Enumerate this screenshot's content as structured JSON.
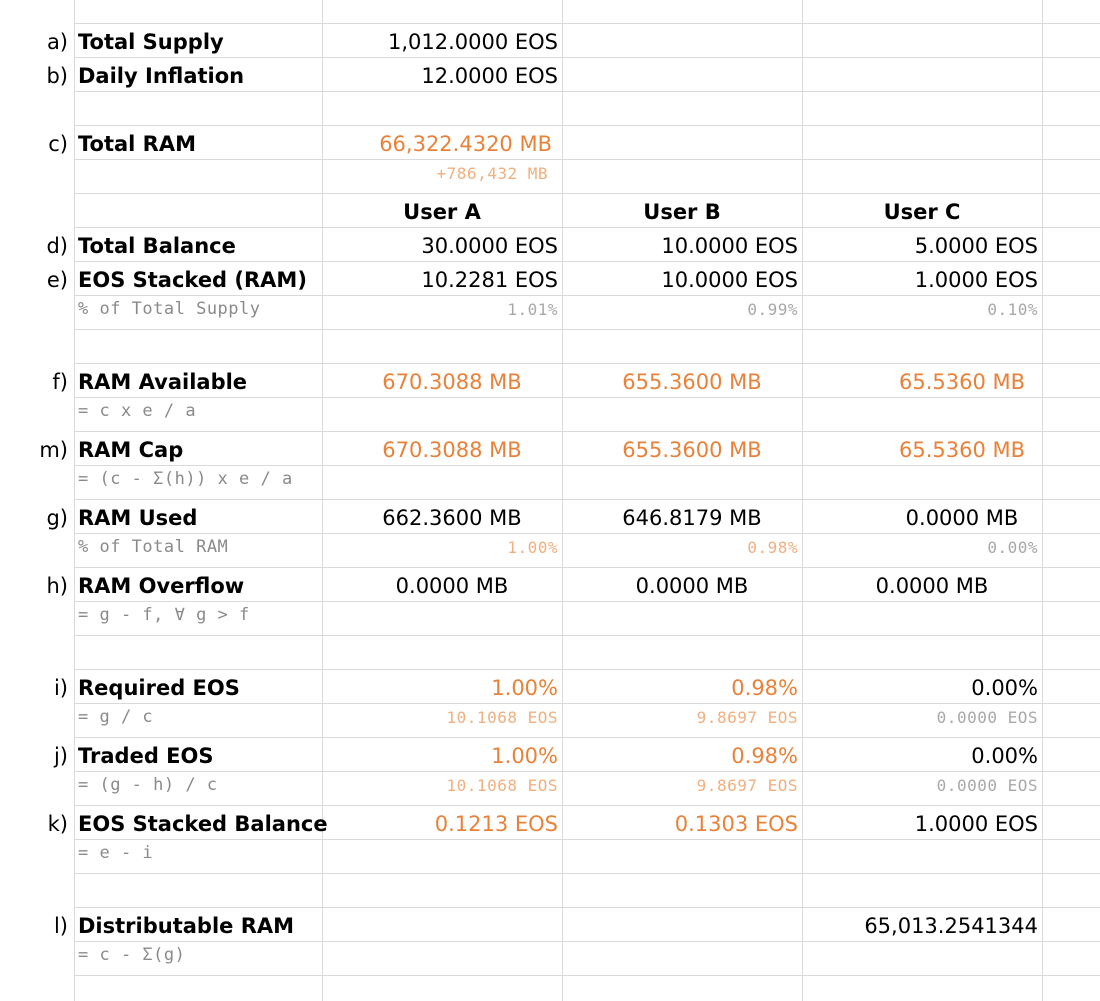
{
  "rows": {
    "a": {
      "letter": "a)",
      "label": "Total Supply",
      "value": "1,012.0000 EOS"
    },
    "b": {
      "letter": "b)",
      "label": "Daily Inflation",
      "value": "12.0000 EOS"
    },
    "c": {
      "letter": "c)",
      "label": "Total RAM",
      "value": "66,322.4320 MB",
      "sub_value": "+786,432 MB"
    },
    "users": [
      "User A",
      "User B",
      "User C"
    ],
    "d": {
      "letter": "d)",
      "label": "Total Balance",
      "values": [
        "30.0000 EOS",
        "10.0000 EOS",
        "5.0000 EOS"
      ]
    },
    "e": {
      "letter": "e)",
      "label": "EOS Stacked (RAM)",
      "values": [
        "10.2281 EOS",
        "10.0000 EOS",
        "1.0000 EOS"
      ],
      "sub_label": "% of Total Supply",
      "sub_values": [
        "1.01%",
        "0.99%",
        "0.10%"
      ]
    },
    "f": {
      "letter": "f)",
      "label": "RAM Available",
      "values": [
        "670.3088 MB",
        "655.3600 MB",
        "65.5360 MB"
      ],
      "formula": "= c x e / a"
    },
    "m": {
      "letter": "m)",
      "label": "RAM Cap",
      "values": [
        "670.3088 MB",
        "655.3600 MB",
        "65.5360 MB"
      ],
      "formula": "= (c - Σ(h)) x e / a"
    },
    "g": {
      "letter": "g)",
      "label": "RAM Used",
      "values": [
        "662.3600 MB",
        "646.8179 MB",
        "0.0000 MB"
      ],
      "sub_label": "% of Total RAM",
      "sub_values": [
        "1.00%",
        "0.98%",
        "0.00%"
      ]
    },
    "h": {
      "letter": "h)",
      "label": "RAM Overflow",
      "values": [
        "0.0000 MB",
        "0.0000 MB",
        "0.0000 MB"
      ],
      "formula": "= g - f, ∀ g > f"
    },
    "i": {
      "letter": "i)",
      "label": "Required EOS",
      "values": [
        "1.00%",
        "0.98%",
        "0.00%"
      ],
      "formula": "= g / c",
      "sub_values": [
        "10.1068 EOS",
        "9.8697 EOS",
        "0.0000 EOS"
      ]
    },
    "j": {
      "letter": "j)",
      "label": "Traded EOS",
      "values": [
        "1.00%",
        "0.98%",
        "0.00%"
      ],
      "formula": "= (g - h) / c",
      "sub_values": [
        "10.1068 EOS",
        "9.8697 EOS",
        "0.0000 EOS"
      ]
    },
    "k": {
      "letter": "k)",
      "label": "EOS Stacked Balance",
      "values": [
        "0.1213 EOS",
        "0.1303 EOS",
        "1.0000 EOS"
      ],
      "formula": "= e - i"
    },
    "l": {
      "letter": "l)",
      "label": "Distributable RAM",
      "value": "65,013.2541344",
      "formula": "= c - Σ(g)"
    }
  },
  "colors": {
    "accent": "#e8823a",
    "accent_light": "#f0b080",
    "muted": "#8a8a8a",
    "grid": "#dadada"
  }
}
